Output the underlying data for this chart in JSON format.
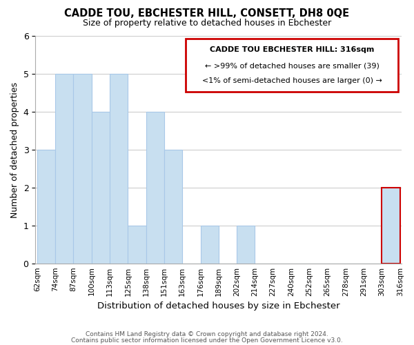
{
  "title": "CADDE TOU, EBCHESTER HILL, CONSETT, DH8 0QE",
  "subtitle": "Size of property relative to detached houses in Ebchester",
  "xlabel": "Distribution of detached houses by size in Ebchester",
  "ylabel": "Number of detached properties",
  "bar_color": "#c8dff0",
  "bar_edgecolor": "#a8c8e8",
  "highlight_edgecolor": "#cc0000",
  "bin_labels": [
    "62sqm",
    "74sqm",
    "87sqm",
    "100sqm",
    "113sqm",
    "125sqm",
    "138sqm",
    "151sqm",
    "163sqm",
    "176sqm",
    "189sqm",
    "202sqm",
    "214sqm",
    "227sqm",
    "240sqm",
    "252sqm",
    "265sqm",
    "278sqm",
    "291sqm",
    "303sqm",
    "316sqm"
  ],
  "counts": [
    3,
    5,
    5,
    4,
    5,
    1,
    4,
    3,
    0,
    1,
    0,
    1,
    0,
    0,
    0,
    0,
    0,
    0,
    0,
    2
  ],
  "ylim": [
    0,
    6
  ],
  "yticks": [
    0,
    1,
    2,
    3,
    4,
    5,
    6
  ],
  "annotation_title": "CADDE TOU EBCHESTER HILL: 316sqm",
  "annotation_line1": "← >99% of detached houses are smaller (39)",
  "annotation_line2": "<1% of semi-detached houses are larger (0) →",
  "highlight_bin_index": 19,
  "footer_line1": "Contains HM Land Registry data © Crown copyright and database right 2024.",
  "footer_line2": "Contains public sector information licensed under the Open Government Licence v3.0.",
  "background_color": "#ffffff",
  "grid_color": "#cccccc"
}
